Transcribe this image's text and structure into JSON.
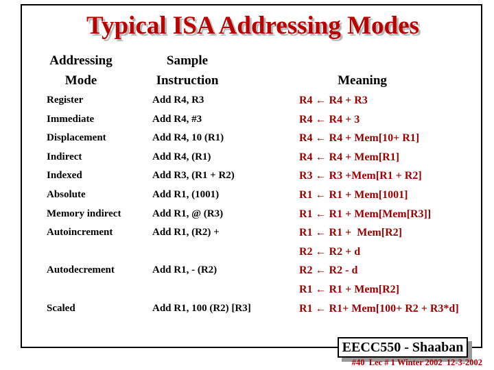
{
  "title": "Typical ISA Addressing Modes",
  "table": {
    "headers": {
      "mode_line1": "Addressing",
      "mode_line2": "Mode",
      "instruction_line1": "Sample",
      "instruction_line2": "Instruction",
      "meaning": "Meaning"
    },
    "rows": [
      {
        "mode": "Register",
        "instruction": "Add R4, R3",
        "meaning": "R4 ← R4 + R3"
      },
      {
        "mode": "Immediate",
        "instruction": "Add R4, #3",
        "meaning": "R4 ← R4 + 3"
      },
      {
        "mode": "Displacement",
        "instruction": "Add R4, 10 (R1)",
        "meaning": "R4 ← R4 + Mem[10+ R1]"
      },
      {
        "mode": "Indirect",
        "instruction": "Add R4, (R1)",
        "meaning": "R4 ← R4 + Mem[R1]"
      },
      {
        "mode": "Indexed",
        "instruction": "Add R3, (R1 + R2)",
        "meaning": "R3 ← R3 +Mem[R1 + R2]"
      },
      {
        "mode": "Absolute",
        "instruction": "Add R1, (1001)",
        "meaning": "R1 ← R1 + Mem[1001]"
      },
      {
        "mode": "Memory indirect",
        "instruction": "Add R1, @ (R3)",
        "meaning": "R1 ← R1 + Mem[Mem[R3]]"
      },
      {
        "mode": "Autoincrement",
        "instruction": "Add R1, (R2) +",
        "meaning": "R1 ← R1 +  Mem[R2]"
      },
      {
        "mode": "",
        "instruction": "",
        "meaning": "R2 ← R2 + d"
      },
      {
        "mode": "Autodecrement",
        "instruction": "Add R1, - (R2)",
        "meaning": "R2 ← R2 - d"
      },
      {
        "mode": "",
        "instruction": "",
        "meaning": "R1 ← R1 + Mem[R2]"
      },
      {
        "mode": "Scaled",
        "instruction": "Add R1, 100 (R2) [R3]",
        "meaning": "R1 ← R1+ Mem[100+ R2 + R3*d]"
      }
    ]
  },
  "footer": {
    "badge": "EECC550 - Shaaban",
    "note": "#40  Lec # 1 Winter 2002  12-3-2002"
  },
  "colors": {
    "title_red": "#bb0000",
    "meaning_red": "#990000",
    "note_red": "#aa0000",
    "shadow_gray": "#b4b4b4"
  }
}
